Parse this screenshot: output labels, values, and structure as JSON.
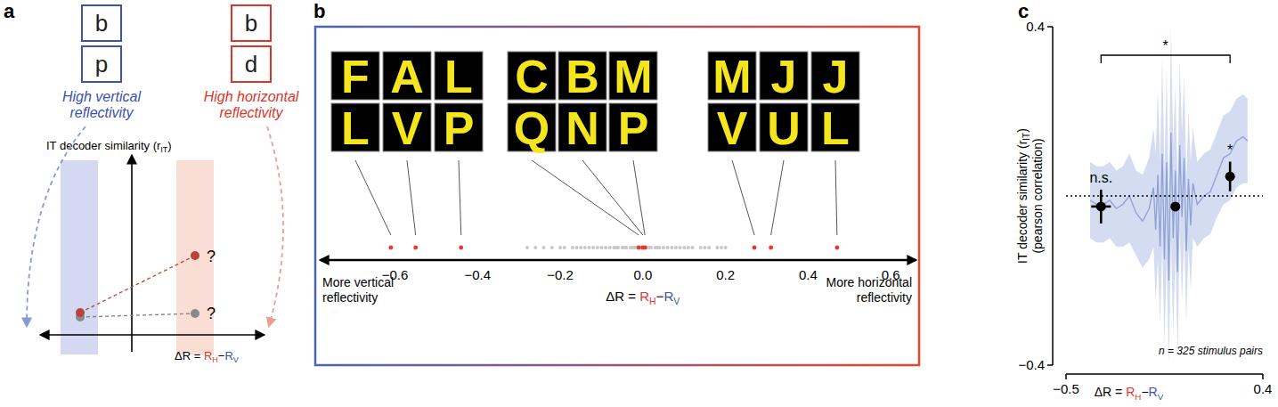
{
  "panel_a": {
    "panel": "a",
    "pairs": [
      {
        "letters": [
          "b",
          "p"
        ],
        "caption": [
          "High vertical",
          "reflectivity"
        ],
        "color": "#3c52ad"
      },
      {
        "letters": [
          "b",
          "d"
        ],
        "caption": [
          "High horizontal",
          "reflectivity"
        ],
        "color": "#d9362b"
      }
    ],
    "y_label": {
      "text": "IT decoder similarity (r",
      "sub": "IT",
      "end": ")"
    },
    "x_label": {
      "lhs": "ΔR = ",
      "a": "R",
      "a_sub": "H",
      "op": "−",
      "b": "R",
      "b_sub": "V"
    },
    "questions": [
      "?",
      "?"
    ]
  },
  "chart_data": [
    {
      "type": "scatter",
      "panel": "b",
      "tick_labels": "x",
      "x_label": {
        "lhs": "ΔR = ",
        "a": "R",
        "a_sub": "H",
        "op": "−",
        "b": "R",
        "b_sub": "V"
      },
      "xlim": [
        -0.78,
        0.66
      ],
      "xticks": [
        {
          "value": -0.6,
          "label": "−0.6"
        },
        {
          "value": -0.4,
          "label": "−0.4"
        },
        {
          "value": -0.2,
          "label": "−0.2"
        },
        {
          "value": 0,
          "label": "0.0"
        },
        0.2,
        0.4,
        0.6
      ],
      "annotations": {
        "left": [
          "More vertical",
          "reflectivity"
        ],
        "right": [
          "More horizontal",
          "reflectivity"
        ]
      },
      "series": [
        {
          "color": "#c8c8c8",
          "x": [
            -0.28,
            -0.26,
            -0.24,
            -0.22,
            -0.2,
            -0.19,
            -0.17,
            -0.16,
            -0.15,
            -0.14,
            -0.13,
            -0.12,
            -0.11,
            -0.1,
            -0.09,
            -0.08,
            -0.07,
            -0.065,
            -0.06,
            -0.05,
            -0.045,
            -0.04,
            -0.03,
            -0.025,
            -0.02,
            -0.015,
            -0.01,
            -0.005,
            0.005,
            0.01,
            0.015,
            0.02,
            0.03,
            0.035,
            0.04,
            0.05,
            0.06,
            0.07,
            0.08,
            0.09,
            0.1,
            0.11,
            0.12,
            0.14,
            0.15,
            0.16,
            0.18,
            0.19,
            0.2,
            0.27,
            0.31
          ]
        },
        {
          "color": "#e8382a",
          "x": [
            -0.61,
            -0.55,
            -0.44,
            -0.01,
            0.0,
            0.005,
            0.27,
            0.31,
            0.47
          ],
          "pairs": [
            [
              "F",
              "L"
            ],
            [
              "A",
              "V"
            ],
            [
              "L",
              "P"
            ],
            [
              "C",
              "Q"
            ],
            [
              "B",
              "N"
            ],
            [
              "M",
              "P"
            ],
            [
              "M",
              "V"
            ],
            [
              "J",
              "U"
            ],
            [
              "J",
              "L"
            ]
          ]
        }
      ]
    },
    {
      "type": "line",
      "panel": "c",
      "y_label": {
        "text": "IT decoder similarity (r",
        "sub": "IT",
        "end": ")",
        "line2": "(pearson correlation)"
      },
      "x_label": {
        "lhs": "ΔR = ",
        "a": "R",
        "a_sub": "H",
        "op": "−",
        "b": "R",
        "b_sub": "V"
      },
      "xlim": [
        -0.5,
        0.4
      ],
      "xticks": [
        {
          "value": -0.5,
          "label": "−0.5"
        },
        0.4
      ],
      "ylim": [
        -0.4,
        0.4
      ],
      "yticks": [
        {
          "value": -0.4,
          "label": "−0.4"
        },
        0.4
      ],
      "baseline": 0,
      "series": [
        {
          "color": "#8ea0d4",
          "band_color": "#c9d3ee",
          "x": [
            -0.39,
            -0.36,
            -0.33,
            -0.3,
            -0.27,
            -0.24,
            -0.21,
            -0.18,
            -0.15,
            -0.12,
            -0.1,
            -0.09,
            -0.08,
            -0.07,
            -0.06,
            -0.05,
            -0.04,
            -0.03,
            -0.02,
            -0.01,
            0.0,
            0.01,
            0.02,
            0.03,
            0.04,
            0.05,
            0.06,
            0.07,
            0.08,
            0.1,
            0.13,
            0.16,
            0.19,
            0.22,
            0.25,
            0.28,
            0.31,
            0.33
          ],
          "values": [
            -0.01,
            -0.02,
            -0.02,
            -0.01,
            -0.03,
            -0.02,
            0.0,
            -0.04,
            -0.06,
            -0.03,
            0.02,
            -0.08,
            0.05,
            -0.12,
            0.1,
            -0.15,
            0.08,
            -0.2,
            0.15,
            -0.1,
            0.06,
            -0.18,
            0.12,
            -0.05,
            0.09,
            -0.13,
            0.04,
            -0.07,
            0.03,
            -0.02,
            0.0,
            0.01,
            0.05,
            0.09,
            0.1,
            0.13,
            0.14,
            0.13
          ],
          "lower": [
            -0.1,
            -0.11,
            -0.11,
            -0.1,
            -0.12,
            -0.12,
            -0.11,
            -0.14,
            -0.17,
            -0.15,
            -0.12,
            -0.25,
            -0.15,
            -0.3,
            -0.12,
            -0.35,
            -0.15,
            -0.4,
            -0.1,
            -0.33,
            -0.14,
            -0.38,
            -0.08,
            -0.25,
            -0.1,
            -0.3,
            -0.12,
            -0.22,
            -0.1,
            -0.12,
            -0.1,
            -0.09,
            -0.05,
            -0.02,
            -0.01,
            0.02,
            0.03,
            0.03
          ],
          "upper": [
            0.08,
            0.07,
            0.07,
            0.08,
            0.06,
            0.07,
            0.1,
            0.06,
            0.05,
            0.09,
            0.16,
            0.1,
            0.25,
            0.08,
            0.33,
            0.05,
            0.3,
            0.0,
            0.4,
            0.12,
            0.26,
            0.03,
            0.32,
            0.15,
            0.28,
            0.04,
            0.2,
            0.08,
            0.16,
            0.08,
            0.1,
            0.11,
            0.15,
            0.19,
            0.2,
            0.23,
            0.24,
            0.23
          ]
        }
      ],
      "points": {
        "color": "#000000",
        "x": [
          -0.34,
          0.0,
          0.25
        ],
        "values": [
          -0.025,
          -0.025,
          0.046
        ],
        "x_err": [
          0.045,
          0.01,
          0.02
        ],
        "y_err": [
          0.04,
          0.01,
          0.035
        ],
        "labels": [
          "n.s.",
          null,
          "*"
        ]
      },
      "bracket": {
        "label": "*"
      },
      "annotation": "n = 325 stimulus pairs"
    }
  ]
}
